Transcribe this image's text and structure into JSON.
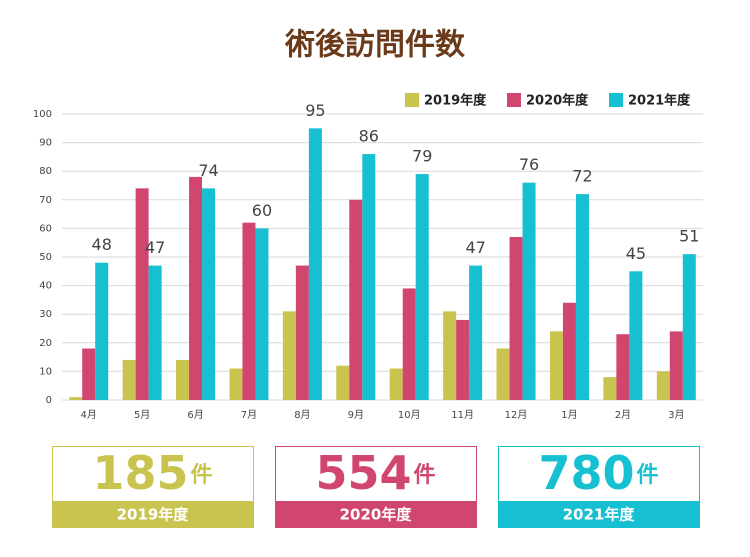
{
  "chart_data": {
    "type": "bar",
    "title": "術後訪問件数",
    "categories": [
      "4月",
      "5月",
      "6月",
      "7月",
      "8月",
      "9月",
      "10月",
      "11月",
      "12月",
      "1月",
      "2月",
      "3月"
    ],
    "series": [
      {
        "name": "2019年度",
        "color": "#c9c44f",
        "values": [
          1,
          14,
          14,
          11,
          31,
          12,
          11,
          31,
          18,
          24,
          8,
          10
        ]
      },
      {
        "name": "2020年度",
        "color": "#d1466f",
        "values": [
          18,
          74,
          78,
          62,
          47,
          70,
          39,
          28,
          57,
          34,
          23,
          24
        ]
      },
      {
        "name": "2021年度",
        "color": "#17c0d0",
        "values": [
          48,
          47,
          74,
          60,
          95,
          86,
          79,
          47,
          76,
          72,
          45,
          51
        ],
        "show_labels": true
      }
    ],
    "ylim": [
      0,
      100
    ],
    "yticks": [
      0,
      10,
      20,
      30,
      40,
      50,
      60,
      70,
      80,
      90,
      100
    ],
    "grid": true,
    "legend": "top-right"
  },
  "summary": [
    {
      "value": 185,
      "unit": "件",
      "label": "2019年度",
      "color": "#c9c44f"
    },
    {
      "value": 554,
      "unit": "件",
      "label": "2020年度",
      "color": "#d1466f"
    },
    {
      "value": 780,
      "unit": "件",
      "label": "2021年度",
      "color": "#17c0d0"
    }
  ]
}
